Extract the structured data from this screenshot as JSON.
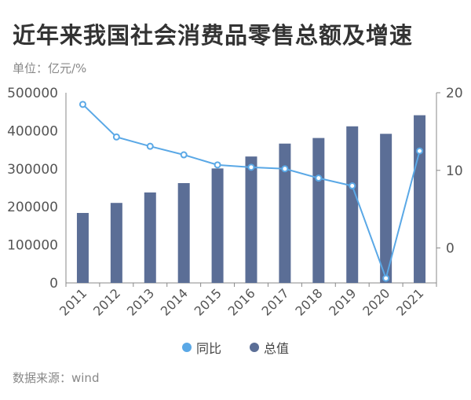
{
  "title": "近年来我国社会消费品零售总额及增速",
  "unit_label": "单位：亿元/%",
  "source": "数据来源：wind",
  "colors": {
    "bar": "#5b6e96",
    "line": "#5aa8e6",
    "axis": "#666666"
  },
  "chart_data": {
    "type": "bar+line",
    "categories": [
      "2011",
      "2012",
      "2013",
      "2014",
      "2015",
      "2016",
      "2017",
      "2018",
      "2019",
      "2020",
      "2021"
    ],
    "series": [
      {
        "name": "总值",
        "type": "bar",
        "axis": "left",
        "values": [
          183919,
          210307,
          237810,
          262394,
          300931,
          332316,
          366262,
          380987,
          411649,
          391981,
          440823
        ]
      },
      {
        "name": "同比",
        "type": "line",
        "axis": "right",
        "values": [
          18.5,
          14.3,
          13.1,
          12.0,
          10.7,
          10.4,
          10.2,
          9.0,
          8.0,
          -3.9,
          12.5
        ]
      }
    ],
    "y_left": {
      "ticks": [
        0,
        100000,
        200000,
        300000,
        400000,
        500000
      ],
      "range": [
        0,
        500000
      ]
    },
    "y_right": {
      "ticks": [
        0,
        10,
        20
      ],
      "range": [
        -4.5,
        20
      ]
    },
    "legend": [
      {
        "name": "同比",
        "color": "#5aa8e6"
      },
      {
        "name": "总值",
        "color": "#5b6e96"
      }
    ]
  }
}
